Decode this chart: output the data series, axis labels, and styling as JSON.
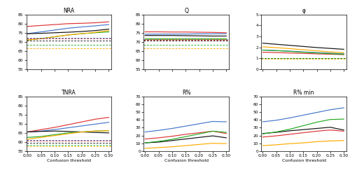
{
  "x": [
    0.0,
    0.05,
    0.1,
    0.15,
    0.2,
    0.25,
    0.3
  ],
  "colors": {
    "RF": "#4477cc",
    "SVM_lin": "#dd3333",
    "SVM_RBF": "#111111",
    "RLR_l1": "#22aa22",
    "RLR_l2": "#ffaa00"
  },
  "NRA": {
    "RF": [
      74.5,
      75.5,
      76.5,
      77.5,
      78.2,
      78.8,
      79.5
    ],
    "SVM_lin": [
      78.5,
      79.0,
      79.5,
      80.0,
      80.2,
      80.5,
      81.0
    ],
    "SVM_RBF": [
      74.5,
      74.7,
      75.0,
      75.3,
      75.7,
      76.2,
      77.0
    ],
    "RLR_l1": [
      71.0,
      71.8,
      72.8,
      73.8,
      74.5,
      75.0,
      75.5
    ],
    "RLR_l2": [
      71.0,
      71.8,
      72.8,
      73.8,
      74.5,
      75.2,
      76.2
    ],
    "dashed": {
      "RF": 72.3,
      "SVM_lin": 71.8,
      "SVM_RBF": 70.8,
      "RLR_l1": 68.2,
      "RLR_l2": 66.5
    },
    "ylim": [
      55,
      85
    ],
    "yticks": [
      55,
      60,
      65,
      70,
      75,
      80,
      85
    ]
  },
  "Q": {
    "RF": [
      74.2,
      74.3,
      74.3,
      74.3,
      74.4,
      74.4,
      74.5
    ],
    "SVM_lin": [
      75.5,
      75.5,
      75.4,
      75.4,
      75.3,
      75.2,
      75.0
    ],
    "SVM_RBF": [
      73.5,
      73.5,
      73.5,
      73.4,
      73.3,
      73.2,
      73.2
    ],
    "RLR_l1": [
      72.0,
      72.0,
      72.0,
      72.0,
      72.0,
      72.0,
      72.0
    ],
    "RLR_l2": [
      71.5,
      71.5,
      71.5,
      71.5,
      71.5,
      71.5,
      71.5
    ],
    "dashed": {
      "RF": 71.3,
      "SVM_lin": 71.0,
      "SVM_RBF": 70.8,
      "RLR_l1": 68.5,
      "RLR_l2": 66.5
    },
    "ylim": [
      55,
      85
    ],
    "yticks": [
      55,
      60,
      65,
      70,
      75,
      80,
      85
    ]
  },
  "phi": {
    "RF": [
      1.75,
      1.7,
      1.65,
      1.58,
      1.52,
      1.46,
      1.4
    ],
    "SVM_lin": [
      1.55,
      1.52,
      1.48,
      1.44,
      1.4,
      1.37,
      1.33
    ],
    "SVM_RBF": [
      2.38,
      2.28,
      2.18,
      2.08,
      1.98,
      1.9,
      1.82
    ],
    "RLR_l1": [
      1.75,
      1.7,
      1.63,
      1.55,
      1.48,
      1.42,
      1.36
    ],
    "RLR_l2": [
      2.05,
      1.97,
      1.88,
      1.78,
      1.68,
      1.58,
      1.5
    ],
    "dashed": {
      "RF": 1.0,
      "SVM_lin": 1.0,
      "SVM_RBF": 1.0,
      "RLR_l1": 1.0,
      "RLR_l2": 0.92
    },
    "ylim": [
      0,
      5
    ],
    "yticks": [
      0,
      1,
      2,
      3,
      4,
      5
    ]
  },
  "TNRA": {
    "RF": [
      65.5,
      66.0,
      66.8,
      67.8,
      68.8,
      69.8,
      70.8
    ],
    "SVM_lin": [
      65.5,
      66.8,
      68.0,
      69.5,
      71.0,
      72.5,
      73.5
    ],
    "SVM_RBF": [
      65.5,
      65.8,
      66.0,
      65.8,
      65.5,
      65.2,
      65.0
    ],
    "RLR_l1": [
      62.5,
      63.0,
      64.0,
      65.0,
      65.5,
      66.0,
      66.2
    ],
    "RLR_l2": [
      61.5,
      62.5,
      63.5,
      64.5,
      65.5,
      66.0,
      66.2
    ],
    "dashed": {
      "RF": 61.2,
      "SVM_lin": 60.5,
      "SVM_RBF": 59.5,
      "RLR_l1": 58.2,
      "RLR_l2": 57.5
    },
    "ylim": [
      55,
      85
    ],
    "yticks": [
      55,
      60,
      65,
      70,
      75,
      80,
      85
    ]
  },
  "Rpct": {
    "RF": [
      24.5,
      26.5,
      29.0,
      32.0,
      35.0,
      38.0,
      37.5
    ],
    "SVM_lin": [
      15.5,
      17.0,
      19.0,
      21.5,
      23.5,
      25.5,
      22.5
    ],
    "SVM_RBF": [
      10.5,
      11.5,
      13.5,
      15.5,
      17.5,
      19.5,
      17.0
    ],
    "RLR_l1": [
      10.5,
      12.5,
      15.0,
      18.5,
      22.0,
      25.5,
      24.0
    ],
    "RLR_l2": [
      3.5,
      4.5,
      5.5,
      7.0,
      8.5,
      10.0,
      9.5
    ],
    "ylim": [
      0,
      70
    ],
    "yticks": [
      0,
      10,
      20,
      30,
      40,
      50,
      60,
      70
    ]
  },
  "Rpct_min": {
    "RF": [
      37.5,
      39.5,
      42.5,
      46.0,
      49.5,
      53.0,
      55.5
    ],
    "SVM_lin": [
      18.0,
      19.5,
      21.5,
      23.5,
      25.5,
      27.0,
      25.5
    ],
    "SVM_RBF": [
      22.5,
      24.0,
      26.0,
      27.5,
      29.0,
      30.5,
      27.0
    ],
    "RLR_l1": [
      22.0,
      24.5,
      28.0,
      32.5,
      37.0,
      40.5,
      41.0
    ],
    "RLR_l2": [
      7.0,
      8.0,
      9.5,
      10.5,
      12.0,
      13.0,
      13.5
    ],
    "ylim": [
      0,
      70
    ],
    "yticks": [
      0,
      10,
      20,
      30,
      40,
      50,
      60,
      70
    ]
  }
}
